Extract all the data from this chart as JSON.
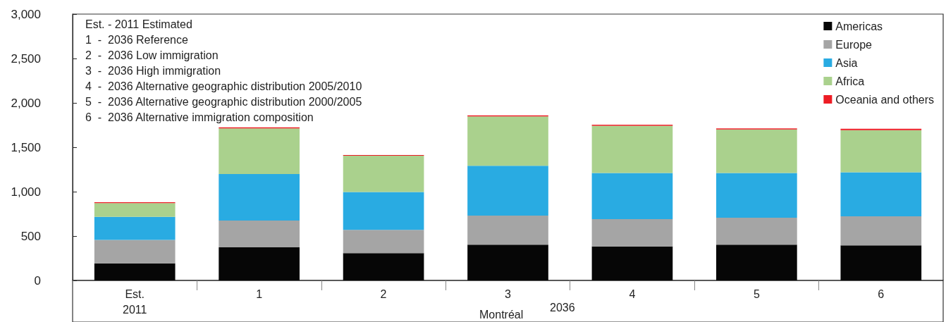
{
  "chart_data": {
    "type": "bar",
    "stacked": true,
    "xlabel": "Montréal",
    "categories": [
      "Est.\n2011",
      "1",
      "2",
      "3",
      "4",
      "5",
      "6"
    ],
    "series": [
      {
        "name": "Americas",
        "color": "#060606",
        "values": [
          193,
          374,
          307,
          402,
          382,
          402,
          394
        ]
      },
      {
        "name": "Europe",
        "color": "#a5a5a5",
        "values": [
          263,
          301,
          263,
          329,
          308,
          304,
          329
        ]
      },
      {
        "name": "Asia",
        "color": "#29abe2",
        "values": [
          260,
          524,
          427,
          560,
          520,
          504,
          495
        ]
      },
      {
        "name": "Africa",
        "color": "#aad18d",
        "values": [
          155,
          514,
          407,
          556,
          532,
          491,
          475
        ]
      },
      {
        "name": "Oceania and others",
        "color": "#ed1c24",
        "values": [
          9,
          12,
          8,
          12,
          12,
          12,
          16
        ]
      }
    ],
    "ylim": [
      0,
      3000
    ],
    "yticks": [
      0,
      500,
      {
        "value": 1000,
        "label": "1,000"
      },
      {
        "value": 1500,
        "label": "1,500"
      },
      {
        "value": 2000,
        "label": "2,000"
      },
      {
        "value": 2500,
        "label": "2,500"
      },
      {
        "value": 3000,
        "label": "3,000"
      }
    ],
    "grid": false,
    "legend": "top right",
    "annotations": [
      "Est. - 2011 Estimated",
      "1  -  2036 Reference",
      "2  -  2036 Low immigration",
      "3  -  2036 High immigration",
      "4  -  2036 Alternative geographic distribution 2005/2010",
      "5  -  2036 Alternative geographic distribution 2000/2005",
      "6  -  2036 Alternative immigration composition",
      "2036"
    ]
  }
}
